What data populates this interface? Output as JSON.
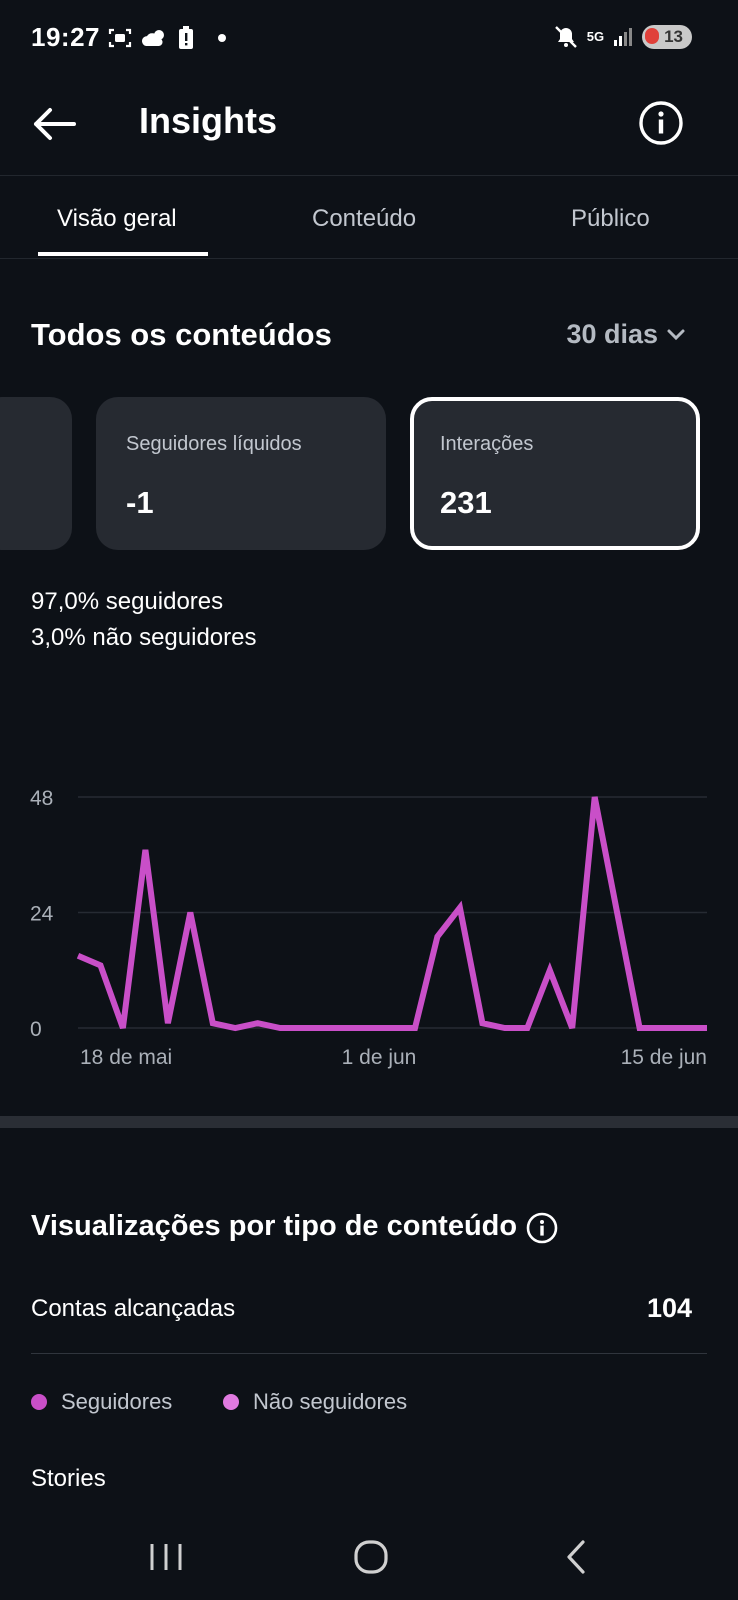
{
  "status_bar": {
    "time": "19:27",
    "network": "5G",
    "battery": "13"
  },
  "header": {
    "title": "Insights",
    "back_icon": "arrow-left-icon",
    "info_icon": "info-circle-icon"
  },
  "tabs": [
    {
      "label": "Visão geral",
      "active": true
    },
    {
      "label": "Conteúdo",
      "active": false
    },
    {
      "label": "Público",
      "active": false
    }
  ],
  "section": {
    "title": "Todos os conteúdos",
    "range": "30 dias"
  },
  "metric_cards": [
    {
      "label": "Seguidores líquidos",
      "value": "-1"
    },
    {
      "label": "Interações",
      "value": "231",
      "selected": true
    }
  ],
  "breakdown": {
    "followers_pct": "97,0%",
    "followers_text": "seguidores",
    "non_followers_pct": "3,0%",
    "non_followers_text": "não seguidores"
  },
  "chart_data": {
    "type": "line",
    "y_ticks": [
      "48",
      "24",
      "0"
    ],
    "ylim": [
      0,
      48
    ],
    "x_tick_labels": [
      "18 de mai",
      "1 de jun",
      "15 de jun"
    ],
    "series": [
      {
        "color": "#c94fc8",
        "values": [
          15,
          13,
          0,
          37,
          1,
          24,
          1,
          0,
          1,
          0,
          0,
          0,
          0,
          0,
          0,
          0,
          19,
          25,
          1,
          0,
          0,
          12,
          0,
          48,
          24,
          0,
          0,
          0,
          0
        ]
      }
    ],
    "grid": true
  },
  "views": {
    "title": "Visualizações por tipo de conteúdo",
    "reach_label": "Contas alcançadas",
    "reach_value": "104",
    "legend": [
      {
        "label": "Seguidores",
        "color": "#c94fc8"
      },
      {
        "label": "Não seguidores",
        "color": "#e07ae0"
      }
    ],
    "stories_label": "Stories"
  },
  "nav": {
    "recent_icon": "recent-apps-icon",
    "home_icon": "home-icon",
    "back_icon": "back-chevron-icon"
  }
}
